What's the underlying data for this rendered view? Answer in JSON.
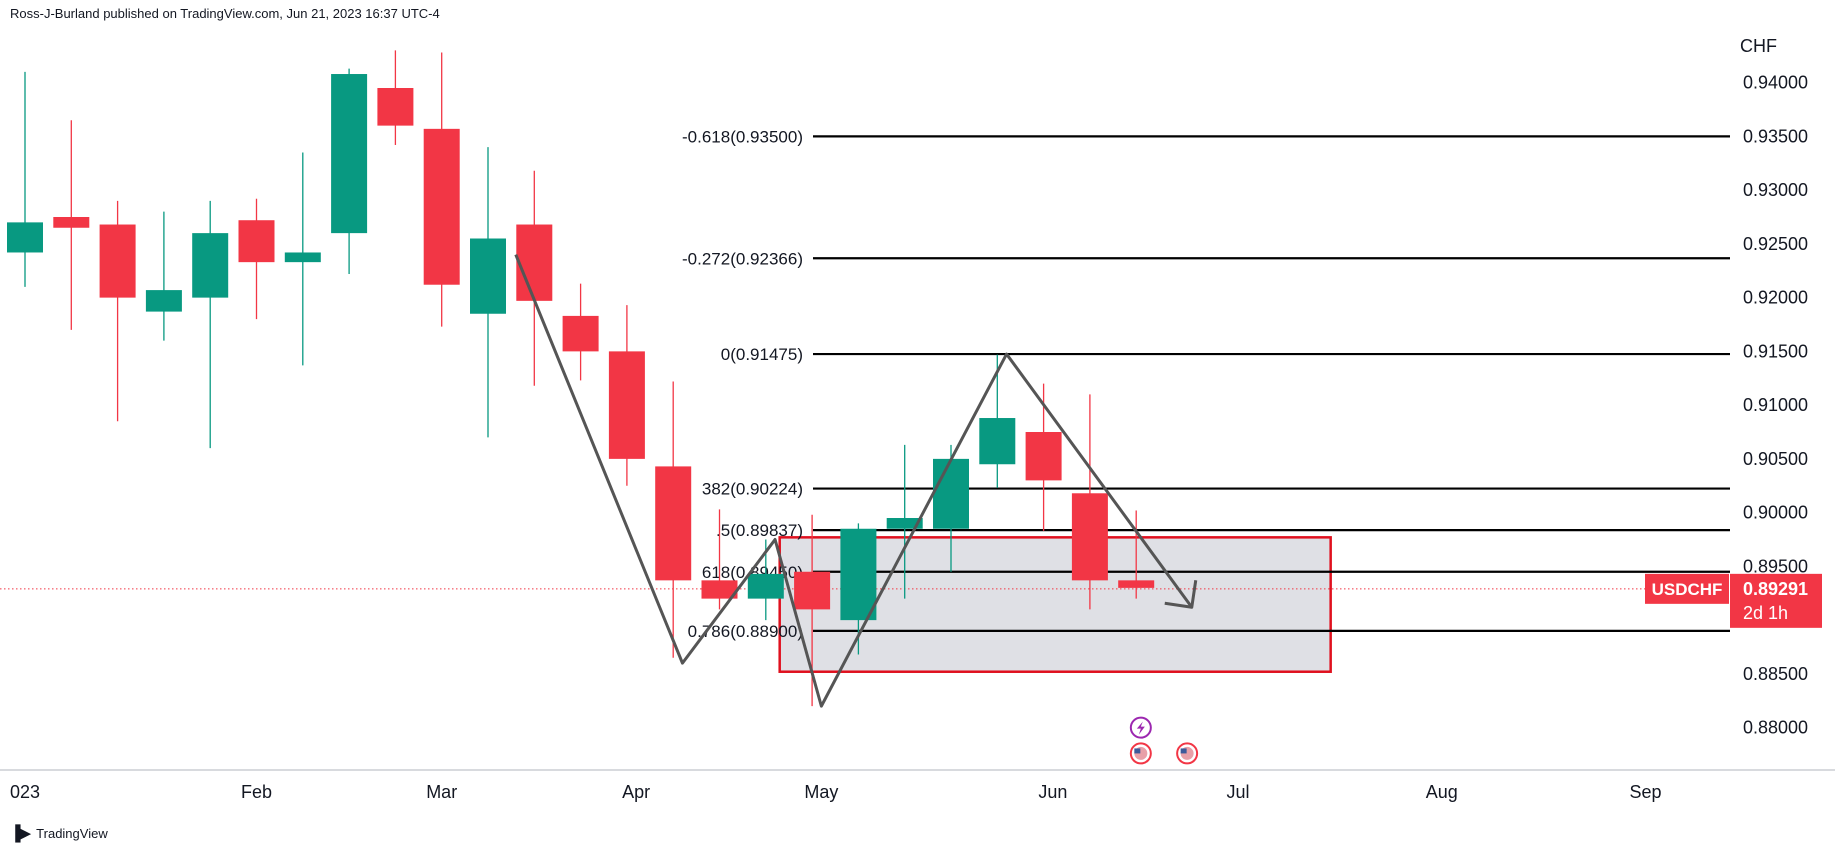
{
  "header": {
    "publisher": "Ross-J-Burland published on TradingView.com, Jun 21, 2023 16:37 UTC-4"
  },
  "footer": {
    "brand": "TradingView"
  },
  "chart_data": {
    "type": "candlestick",
    "symbol": "USDCHF",
    "currency_label": "CHF",
    "last_price": "0.89291",
    "countdown": "2d 1h",
    "colors": {
      "up": "#089981",
      "down": "#f23645",
      "fib": "#000000",
      "zone_border": "#e0101e",
      "zone_fill": "#d4d6dc",
      "path": "#555555"
    },
    "y_ticks": [
      "0.94000",
      "0.93500",
      "0.93000",
      "0.92500",
      "0.92000",
      "0.91500",
      "0.91000",
      "0.90500",
      "0.90000",
      "0.89500",
      "0.88500",
      "0.88000"
    ],
    "x_ticks": [
      {
        "label": "023",
        "x": 0
      },
      {
        "label": "Feb",
        "x": 5
      },
      {
        "label": "Mar",
        "x": 9
      },
      {
        "label": "Apr",
        "x": 13.2
      },
      {
        "label": "May",
        "x": 17.2
      },
      {
        "label": "Jun",
        "x": 22.2
      },
      {
        "label": "Jul",
        "x": 26.2
      },
      {
        "label": "Aug",
        "x": 30.6
      },
      {
        "label": "Sep",
        "x": 35
      }
    ],
    "candles": [
      {
        "o": 0.9242,
        "h": 0.941,
        "l": 0.921,
        "c": 0.927
      },
      {
        "o": 0.9275,
        "h": 0.9365,
        "l": 0.917,
        "c": 0.9265
      },
      {
        "o": 0.9268,
        "h": 0.929,
        "l": 0.9085,
        "c": 0.92
      },
      {
        "o": 0.9187,
        "h": 0.928,
        "l": 0.916,
        "c": 0.9207
      },
      {
        "o": 0.92,
        "h": 0.929,
        "l": 0.906,
        "c": 0.926
      },
      {
        "o": 0.9272,
        "h": 0.9292,
        "l": 0.918,
        "c": 0.9233
      },
      {
        "o": 0.9233,
        "h": 0.9335,
        "l": 0.9137,
        "c": 0.9242
      },
      {
        "o": 0.926,
        "h": 0.9413,
        "l": 0.9222,
        "c": 0.9408
      },
      {
        "o": 0.9395,
        "h": 0.943,
        "l": 0.9342,
        "c": 0.936
      },
      {
        "o": 0.9357,
        "h": 0.9428,
        "l": 0.9173,
        "c": 0.9212
      },
      {
        "o": 0.9185,
        "h": 0.934,
        "l": 0.907,
        "c": 0.9255
      },
      {
        "o": 0.9268,
        "h": 0.9318,
        "l": 0.9118,
        "c": 0.9197
      },
      {
        "o": 0.9183,
        "h": 0.9213,
        "l": 0.9123,
        "c": 0.915
      },
      {
        "o": 0.915,
        "h": 0.9193,
        "l": 0.9025,
        "c": 0.905
      },
      {
        "o": 0.9043,
        "h": 0.9122,
        "l": 0.8865,
        "c": 0.8937
      },
      {
        "o": 0.8937,
        "h": 0.9003,
        "l": 0.891,
        "c": 0.892
      },
      {
        "o": 0.892,
        "h": 0.8975,
        "l": 0.89,
        "c": 0.8943
      },
      {
        "o": 0.8945,
        "h": 0.8998,
        "l": 0.882,
        "c": 0.891
      },
      {
        "o": 0.89,
        "h": 0.899,
        "l": 0.8868,
        "c": 0.8985
      },
      {
        "o": 0.8985,
        "h": 0.9063,
        "l": 0.892,
        "c": 0.8995
      },
      {
        "o": 0.8985,
        "h": 0.9063,
        "l": 0.8945,
        "c": 0.905
      },
      {
        "o": 0.9045,
        "h": 0.9147,
        "l": 0.9023,
        "c": 0.9088
      },
      {
        "o": 0.9075,
        "h": 0.912,
        "l": 0.8983,
        "c": 0.903
      },
      {
        "o": 0.9018,
        "h": 0.911,
        "l": 0.891,
        "c": 0.8937
      },
      {
        "o": 0.8937,
        "h": 0.9002,
        "l": 0.892,
        "c": 0.893
      }
    ],
    "fib_levels": [
      {
        "label": "-0.618(0.93500)",
        "price": 0.935
      },
      {
        "label": "-0.272(0.92366)",
        "price": 0.92366
      },
      {
        "label": "0(0.91475)",
        "price": 0.91475
      },
      {
        "label": "382(0.90224)",
        "price": 0.90224
      },
      {
        "label": ".5(0.89837)",
        "price": 0.89837
      },
      {
        "label": "618(0.89450)",
        "price": 0.8945
      },
      {
        "label": "0.786(0.88900)",
        "price": 0.889
      }
    ],
    "zone": {
      "x_start": 16.3,
      "x_end": 28.2,
      "price_top": 0.8977,
      "price_bottom": 0.8852
    },
    "path": [
      {
        "x": 10.6,
        "p": 0.924
      },
      {
        "x": 14.2,
        "p": 0.886
      },
      {
        "x": 16.2,
        "p": 0.8975
      },
      {
        "x": 17.2,
        "p": 0.882
      },
      {
        "x": 21.2,
        "p": 0.91475
      },
      {
        "x": 25.2,
        "p": 0.8912
      }
    ],
    "events": [
      {
        "x": 24.1,
        "p": 0.88,
        "icon": "lightning-icon"
      },
      {
        "x": 24.1,
        "p": 0.8776,
        "icon": "us-flag-icon"
      },
      {
        "x": 25.1,
        "p": 0.8776,
        "icon": "us-flag-icon"
      }
    ]
  }
}
